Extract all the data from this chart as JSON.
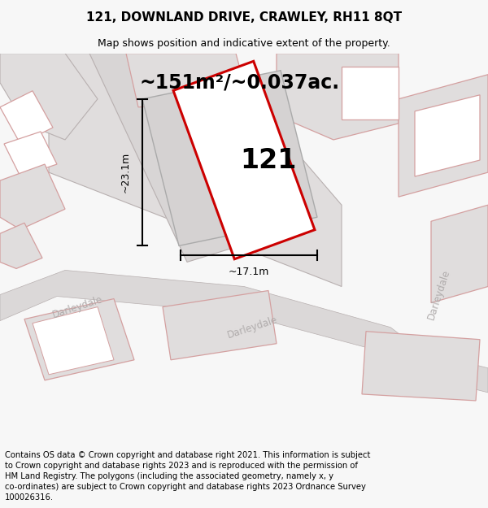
{
  "title": "121, DOWNLAND DRIVE, CRAWLEY, RH11 8QT",
  "subtitle": "Map shows position and indicative extent of the property.",
  "area_text": "~151m²/~0.037ac.",
  "property_number": "121",
  "dim_width": "~17.1m",
  "dim_height": "~23.1m",
  "street_left": "Darleydale",
  "street_center": "Darleydale",
  "street_right": "Darleydale",
  "footer": "Contains OS data © Crown copyright and database right 2021. This information is subject to Crown copyright and database rights 2023 and is reproduced with the permission of HM Land Registry. The polygons (including the associated geometry, namely x, y co-ordinates) are subject to Crown copyright and database rights 2023 Ordnance Survey 100026316.",
  "bg_color": "#f7f7f7",
  "map_bg": "#eeecec",
  "gray_fill": "#e0dddd",
  "gray_fill2": "#d8d5d5",
  "pink_edge": "#d4a0a0",
  "gray_edge": "#b8b0b0",
  "red_color": "#cc0000",
  "white": "#ffffff",
  "street_color": "#b0acac",
  "title_fontsize": 11,
  "subtitle_fontsize": 9,
  "area_fontsize": 17,
  "number_fontsize": 24,
  "footer_fontsize": 7.2,
  "dim_fontsize": 9
}
